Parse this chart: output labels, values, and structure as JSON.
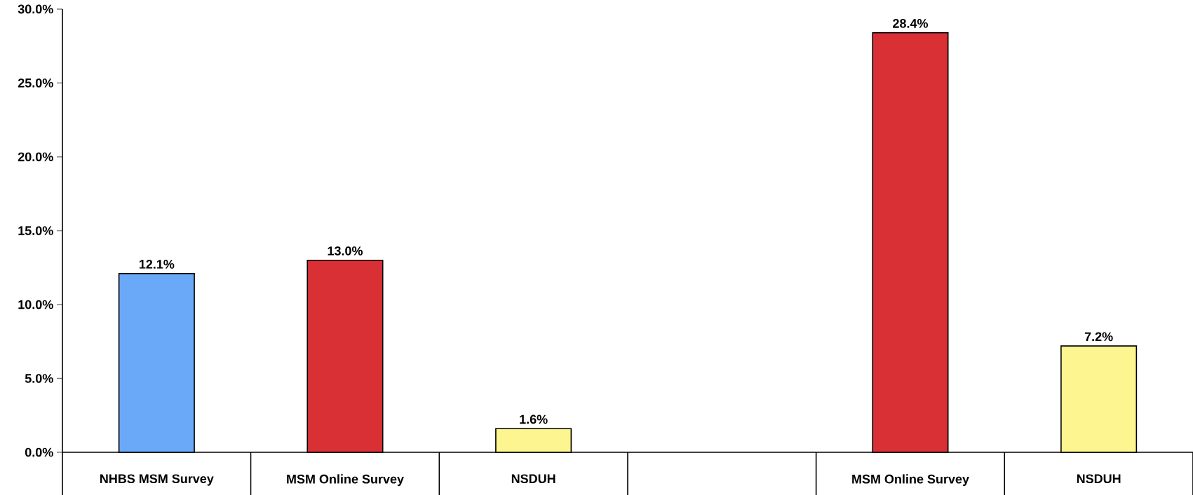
{
  "chart_data": {
    "type": "bar",
    "categories": [
      "NHBS MSM Survey",
      "MSM Online Survey",
      "NSDUH",
      null,
      "MSM Online Survey",
      "NSDUH"
    ],
    "values": [
      12.1,
      13.0,
      1.6,
      null,
      28.4,
      7.2
    ],
    "colors": [
      "#6aa9f7",
      "#d93036",
      "#fdf58f",
      null,
      "#d93036",
      "#fdf58f"
    ],
    "value_labels": [
      "12.1%",
      "13.0%",
      "1.6%",
      null,
      "28.4%",
      "7.2%"
    ],
    "ylim": [
      0,
      30
    ],
    "yticks": [
      {
        "value": 0,
        "label": "0.0%"
      },
      {
        "value": 5,
        "label": "5.0%"
      },
      {
        "value": 10,
        "label": "10.0%"
      },
      {
        "value": 15,
        "label": "15.0%"
      },
      {
        "value": 20,
        "label": "20.0%"
      },
      {
        "value": 25,
        "label": "25.0%"
      },
      {
        "value": 30,
        "label": "30.0%"
      }
    ],
    "grid": false
  }
}
